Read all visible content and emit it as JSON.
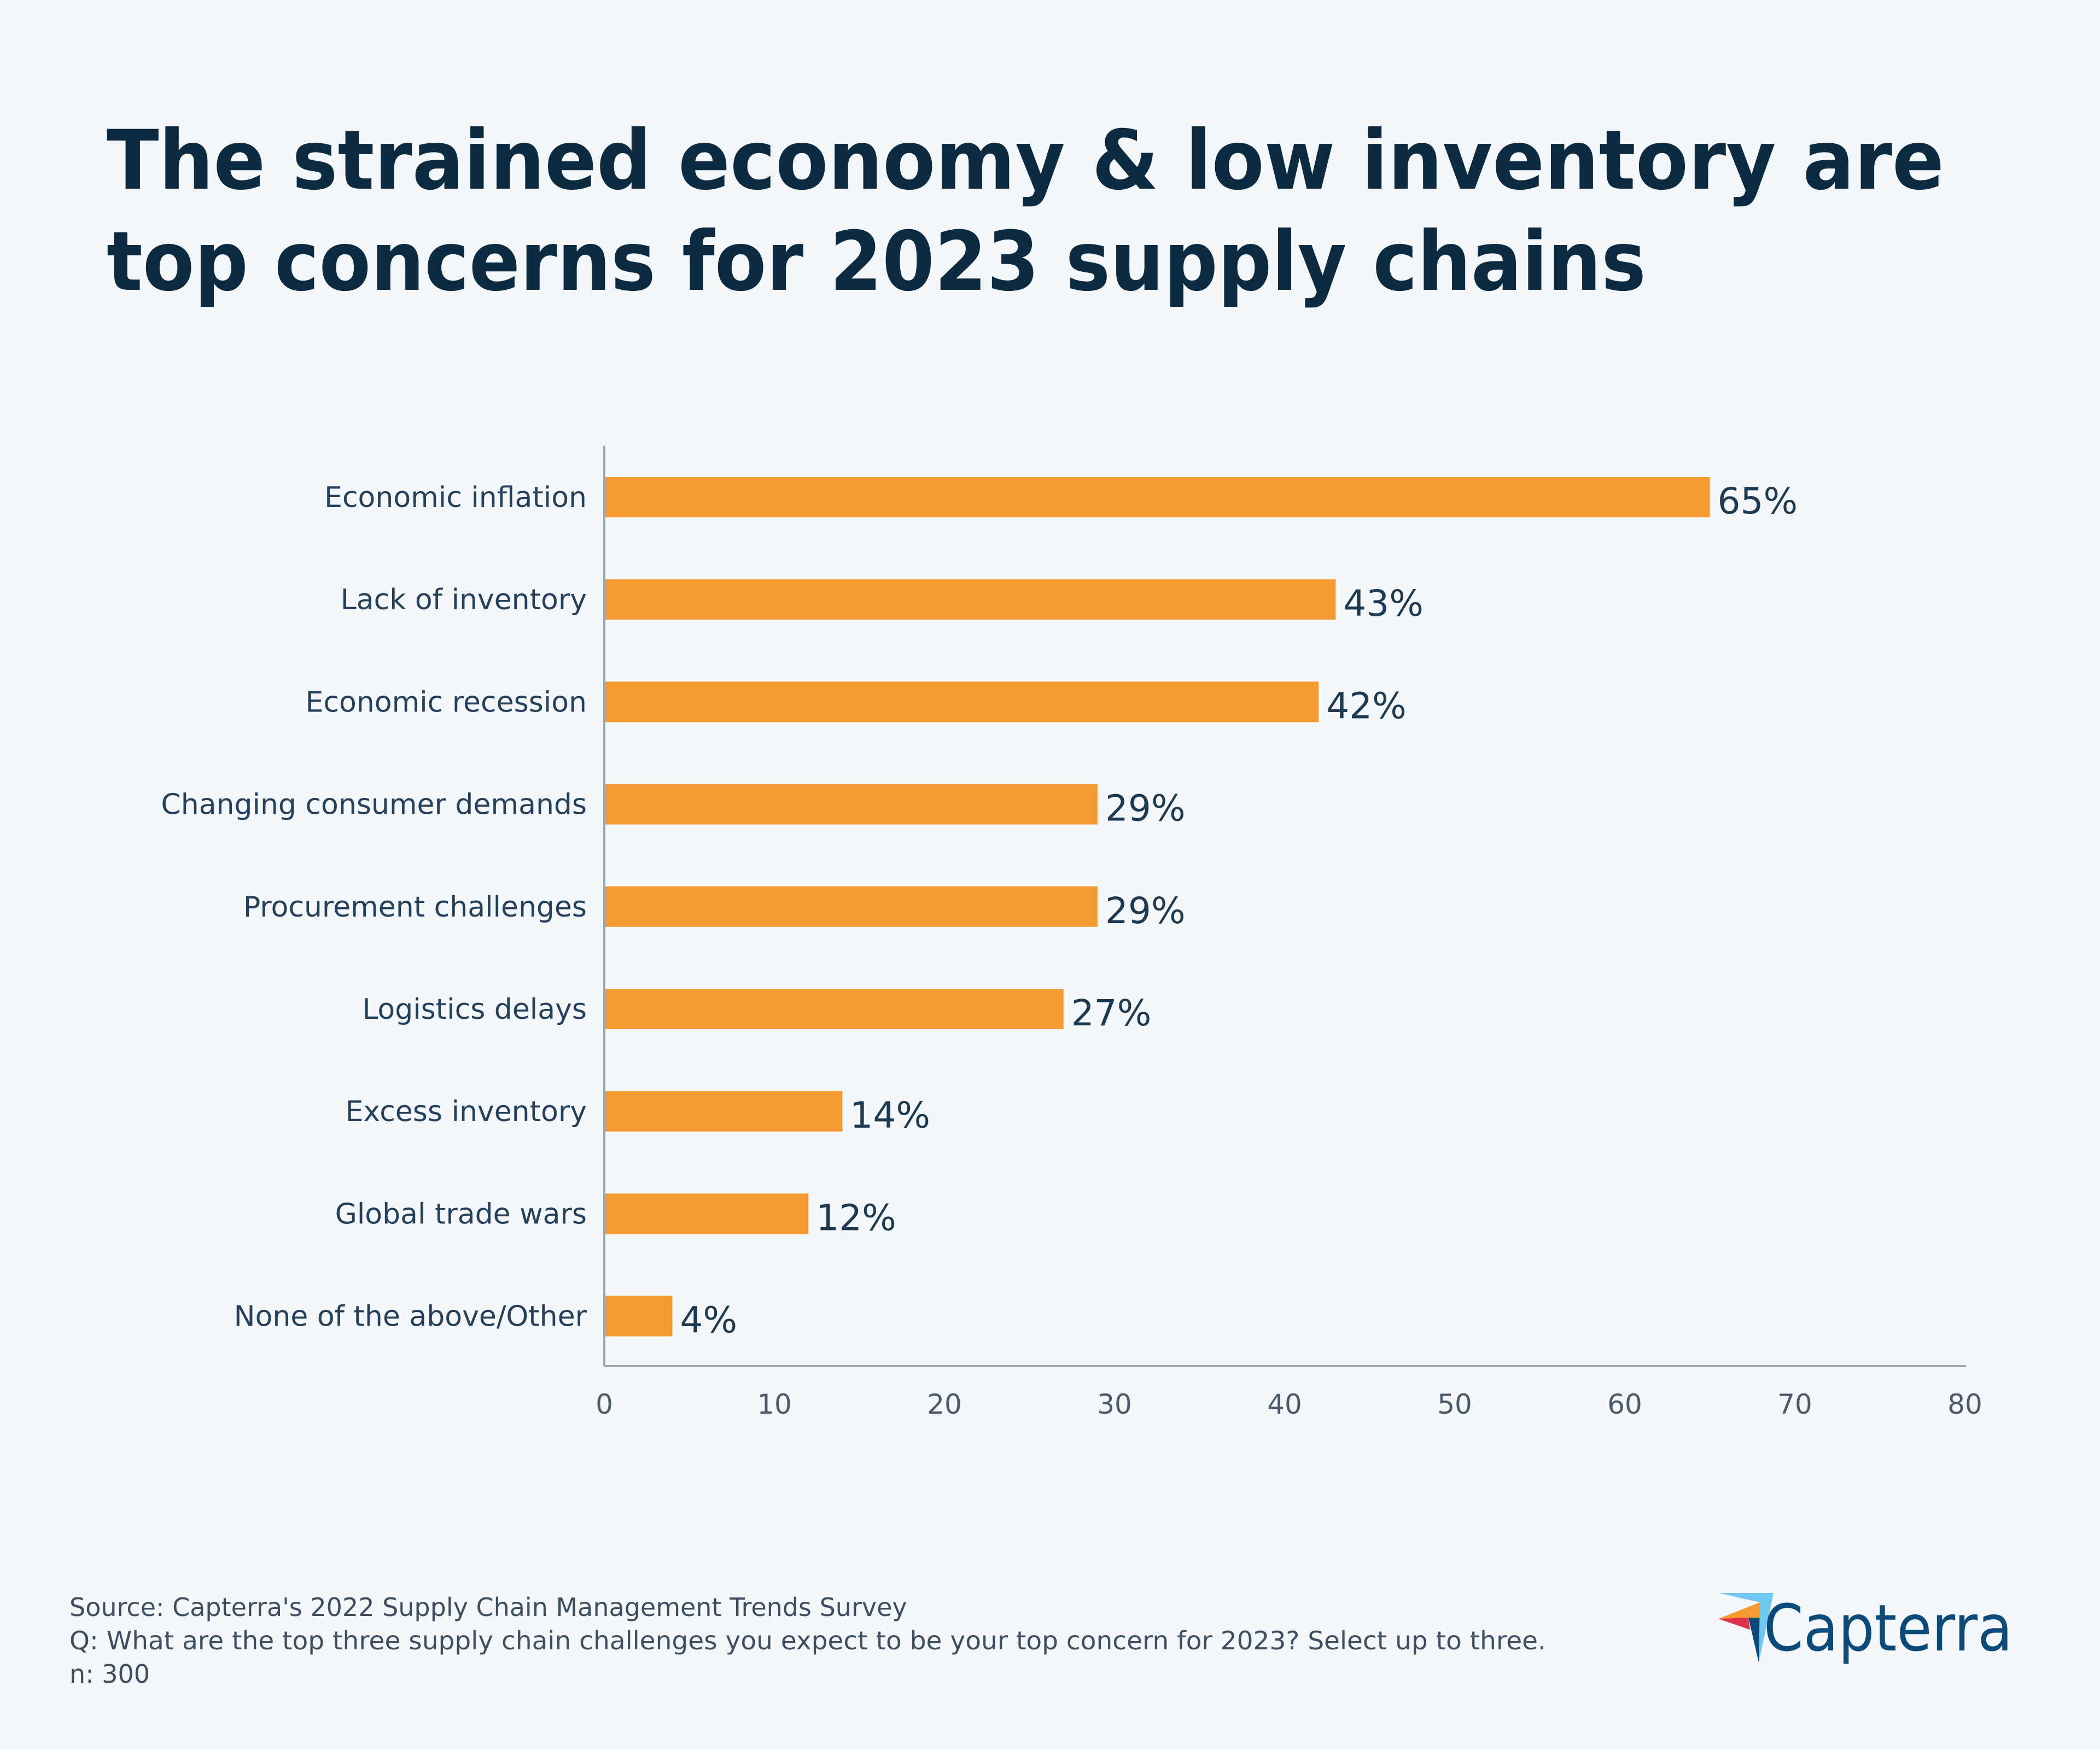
{
  "chart_data": {
    "type": "bar",
    "orientation": "horizontal",
    "title_lines": [
      "The strained economy & low inventory are",
      "top concerns for 2023 supply chains"
    ],
    "categories": [
      "Economic inflation",
      "Lack of inventory",
      "Economic recession",
      "Changing consumer demands",
      "Procurement challenges",
      "Logistics delays",
      "Excess inventory",
      "Global trade wars",
      "None of the above/Other"
    ],
    "values": [
      65,
      43,
      42,
      29,
      29,
      27,
      14,
      12,
      4
    ],
    "data_labels": [
      "65%",
      "43%",
      "42%",
      "29%",
      "29%",
      "27%",
      "14%",
      "12%",
      "4%"
    ],
    "xlim": [
      0,
      80
    ],
    "xticks": [
      0,
      10,
      20,
      30,
      40,
      50,
      60,
      70,
      80
    ],
    "grid": false,
    "legend": "none",
    "bar_color": "#f59a30"
  },
  "footer": {
    "source": "Source: Capterra's 2022 Supply Chain Management Trends Survey",
    "question": "Q: What are the top three supply chain challenges you expect to be your top concern for 2023? Select up to three.",
    "n": "n: 300"
  },
  "logo": {
    "text": "Capterra"
  },
  "colors": {
    "background": "#f3f7fa",
    "title": "#0d2b40",
    "logo_text": "#0c4a7a"
  }
}
